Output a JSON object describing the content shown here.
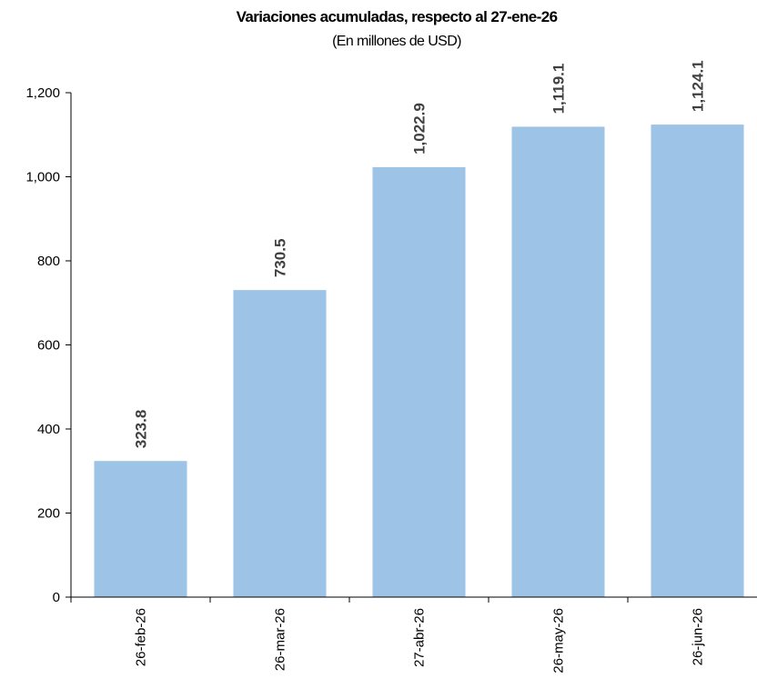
{
  "chart_data": {
    "type": "bar",
    "title": "Variaciones acumuladas, respecto al 27-ene-26",
    "subtitle": "(En millones de USD)",
    "xlabel": "",
    "ylabel": "",
    "categories": [
      "26-feb-26",
      "26-mar-26",
      "27-abr-26",
      "26-may-26",
      "26-jun-26"
    ],
    "values": [
      323.8,
      730.5,
      1022.9,
      1119.1,
      1124.1
    ],
    "data_labels": [
      "323.8",
      "730.5",
      "1,022.9",
      "1,119.1",
      "1,124.1"
    ],
    "ylim": [
      0,
      1200
    ],
    "yticks": [
      0,
      200,
      400,
      600,
      800,
      1000,
      1200
    ],
    "ytick_labels": [
      "0",
      "200",
      "400",
      "600",
      "800",
      "1,000",
      "1,200"
    ],
    "grid": false,
    "legend": "none",
    "bar_color": "#9DC3E6"
  }
}
